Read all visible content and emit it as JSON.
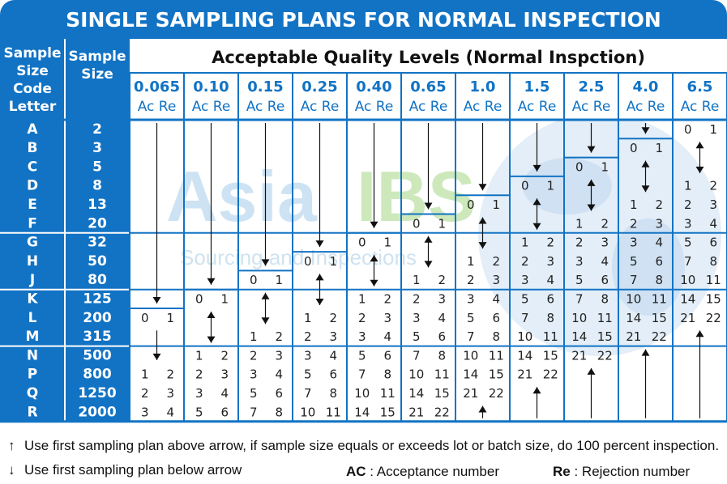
{
  "title": "SINGLE SAMPLING PLANS FOR NORMAL INSPECTION",
  "headers": {
    "code_letter": [
      "Sample",
      "Size",
      "Code",
      "Letter"
    ],
    "sample_size": [
      "Sample",
      "Size"
    ],
    "aql_title": "Acceptable Quality Levels (Normal Inspction)",
    "ac_re": "Ac Re"
  },
  "aql_levels": [
    "0.065",
    "0.10",
    "0.15",
    "0.25",
    "0.40",
    "0.65",
    "1.0",
    "1.5",
    "2.5",
    "4.0",
    "6.5"
  ],
  "rows": [
    {
      "code": "A",
      "size": "2"
    },
    {
      "code": "B",
      "size": "3"
    },
    {
      "code": "C",
      "size": "5"
    },
    {
      "code": "D",
      "size": "8"
    },
    {
      "code": "E",
      "size": "13"
    },
    {
      "code": "F",
      "size": "20"
    },
    {
      "code": "G",
      "size": "32"
    },
    {
      "code": "H",
      "size": "50"
    },
    {
      "code": "J",
      "size": "80"
    },
    {
      "code": "K",
      "size": "125"
    },
    {
      "code": "L",
      "size": "200"
    },
    {
      "code": "M",
      "size": "315"
    },
    {
      "code": "N",
      "size": "500"
    },
    {
      "code": "P",
      "size": "800"
    },
    {
      "code": "Q",
      "size": "1250"
    },
    {
      "code": "R",
      "size": "2000"
    }
  ],
  "plan_values": [
    {
      "col": 0,
      "row": 10,
      "ac": "0",
      "re": "1"
    },
    {
      "col": 0,
      "row": 13,
      "ac": "1",
      "re": "2"
    },
    {
      "col": 0,
      "row": 14,
      "ac": "2",
      "re": "3"
    },
    {
      "col": 0,
      "row": 15,
      "ac": "3",
      "re": "4"
    },
    {
      "col": 1,
      "row": 9,
      "ac": "0",
      "re": "1"
    },
    {
      "col": 1,
      "row": 12,
      "ac": "1",
      "re": "2"
    },
    {
      "col": 1,
      "row": 13,
      "ac": "2",
      "re": "3"
    },
    {
      "col": 1,
      "row": 14,
      "ac": "3",
      "re": "4"
    },
    {
      "col": 1,
      "row": 15,
      "ac": "5",
      "re": "6"
    },
    {
      "col": 2,
      "row": 8,
      "ac": "0",
      "re": "1"
    },
    {
      "col": 2,
      "row": 11,
      "ac": "1",
      "re": "2"
    },
    {
      "col": 2,
      "row": 12,
      "ac": "2",
      "re": "3"
    },
    {
      "col": 2,
      "row": 13,
      "ac": "3",
      "re": "4"
    },
    {
      "col": 2,
      "row": 14,
      "ac": "5",
      "re": "6"
    },
    {
      "col": 2,
      "row": 15,
      "ac": "7",
      "re": "8"
    },
    {
      "col": 3,
      "row": 7,
      "ac": "0",
      "re": "1"
    },
    {
      "col": 3,
      "row": 10,
      "ac": "1",
      "re": "2"
    },
    {
      "col": 3,
      "row": 11,
      "ac": "2",
      "re": "3"
    },
    {
      "col": 3,
      "row": 12,
      "ac": "3",
      "re": "4"
    },
    {
      "col": 3,
      "row": 13,
      "ac": "5",
      "re": "6"
    },
    {
      "col": 3,
      "row": 14,
      "ac": "7",
      "re": "8"
    },
    {
      "col": 3,
      "row": 15,
      "ac": "10",
      "re": "11"
    },
    {
      "col": 4,
      "row": 6,
      "ac": "0",
      "re": "1"
    },
    {
      "col": 4,
      "row": 9,
      "ac": "1",
      "re": "2"
    },
    {
      "col": 4,
      "row": 10,
      "ac": "2",
      "re": "3"
    },
    {
      "col": 4,
      "row": 11,
      "ac": "3",
      "re": "4"
    },
    {
      "col": 4,
      "row": 12,
      "ac": "5",
      "re": "6"
    },
    {
      "col": 4,
      "row": 13,
      "ac": "7",
      "re": "8"
    },
    {
      "col": 4,
      "row": 14,
      "ac": "10",
      "re": "11"
    },
    {
      "col": 4,
      "row": 15,
      "ac": "14",
      "re": "15"
    },
    {
      "col": 5,
      "row": 5,
      "ac": "0",
      "re": "1"
    },
    {
      "col": 5,
      "row": 8,
      "ac": "1",
      "re": "2"
    },
    {
      "col": 5,
      "row": 9,
      "ac": "2",
      "re": "3"
    },
    {
      "col": 5,
      "row": 10,
      "ac": "3",
      "re": "4"
    },
    {
      "col": 5,
      "row": 11,
      "ac": "5",
      "re": "6"
    },
    {
      "col": 5,
      "row": 12,
      "ac": "7",
      "re": "8"
    },
    {
      "col": 5,
      "row": 13,
      "ac": "10",
      "re": "11"
    },
    {
      "col": 5,
      "row": 14,
      "ac": "14",
      "re": "15"
    },
    {
      "col": 5,
      "row": 15,
      "ac": "21",
      "re": "22"
    },
    {
      "col": 6,
      "row": 4,
      "ac": "0",
      "re": "1"
    },
    {
      "col": 6,
      "row": 7,
      "ac": "1",
      "re": "2"
    },
    {
      "col": 6,
      "row": 8,
      "ac": "2",
      "re": "3"
    },
    {
      "col": 6,
      "row": 9,
      "ac": "3",
      "re": "4"
    },
    {
      "col": 6,
      "row": 10,
      "ac": "5",
      "re": "6"
    },
    {
      "col": 6,
      "row": 11,
      "ac": "7",
      "re": "8"
    },
    {
      "col": 6,
      "row": 12,
      "ac": "10",
      "re": "11"
    },
    {
      "col": 6,
      "row": 13,
      "ac": "14",
      "re": "15"
    },
    {
      "col": 6,
      "row": 14,
      "ac": "21",
      "re": "22"
    },
    {
      "col": 7,
      "row": 3,
      "ac": "0",
      "re": "1"
    },
    {
      "col": 7,
      "row": 6,
      "ac": "1",
      "re": "2"
    },
    {
      "col": 7,
      "row": 7,
      "ac": "2",
      "re": "3"
    },
    {
      "col": 7,
      "row": 8,
      "ac": "3",
      "re": "4"
    },
    {
      "col": 7,
      "row": 9,
      "ac": "5",
      "re": "6"
    },
    {
      "col": 7,
      "row": 10,
      "ac": "7",
      "re": "8"
    },
    {
      "col": 7,
      "row": 11,
      "ac": "10",
      "re": "11"
    },
    {
      "col": 7,
      "row": 12,
      "ac": "14",
      "re": "15"
    },
    {
      "col": 7,
      "row": 13,
      "ac": "21",
      "re": "22"
    },
    {
      "col": 8,
      "row": 2,
      "ac": "0",
      "re": "1"
    },
    {
      "col": 8,
      "row": 5,
      "ac": "1",
      "re": "2"
    },
    {
      "col": 8,
      "row": 6,
      "ac": "2",
      "re": "3"
    },
    {
      "col": 8,
      "row": 7,
      "ac": "3",
      "re": "4"
    },
    {
      "col": 8,
      "row": 8,
      "ac": "5",
      "re": "6"
    },
    {
      "col": 8,
      "row": 9,
      "ac": "7",
      "re": "8"
    },
    {
      "col": 8,
      "row": 10,
      "ac": "10",
      "re": "11"
    },
    {
      "col": 8,
      "row": 11,
      "ac": "14",
      "re": "15"
    },
    {
      "col": 8,
      "row": 12,
      "ac": "21",
      "re": "22"
    },
    {
      "col": 9,
      "row": 1,
      "ac": "0",
      "re": "1"
    },
    {
      "col": 9,
      "row": 4,
      "ac": "1",
      "re": "2"
    },
    {
      "col": 9,
      "row": 5,
      "ac": "2",
      "re": "3"
    },
    {
      "col": 9,
      "row": 6,
      "ac": "3",
      "re": "4"
    },
    {
      "col": 9,
      "row": 7,
      "ac": "5",
      "re": "6"
    },
    {
      "col": 9,
      "row": 8,
      "ac": "7",
      "re": "8"
    },
    {
      "col": 9,
      "row": 9,
      "ac": "10",
      "re": "11"
    },
    {
      "col": 9,
      "row": 10,
      "ac": "14",
      "re": "15"
    },
    {
      "col": 9,
      "row": 11,
      "ac": "21",
      "re": "22"
    },
    {
      "col": 10,
      "row": 0,
      "ac": "0",
      "re": "1"
    },
    {
      "col": 10,
      "row": 3,
      "ac": "1",
      "re": "2"
    },
    {
      "col": 10,
      "row": 4,
      "ac": "2",
      "re": "3"
    },
    {
      "col": 10,
      "row": 5,
      "ac": "3",
      "re": "4"
    },
    {
      "col": 10,
      "row": 6,
      "ac": "5",
      "re": "6"
    },
    {
      "col": 10,
      "row": 7,
      "ac": "7",
      "re": "8"
    },
    {
      "col": 10,
      "row": 8,
      "ac": "10",
      "re": "11"
    },
    {
      "col": 10,
      "row": 9,
      "ac": "14",
      "re": "15"
    },
    {
      "col": 10,
      "row": 10,
      "ac": "21",
      "re": "22"
    }
  ],
  "arrows": [
    {
      "col": 0,
      "from_row": 0,
      "to_row": 9,
      "dir": "down"
    },
    {
      "col": 0,
      "from_row": 11,
      "to_row": 12,
      "dir": "down"
    },
    {
      "col": 1,
      "from_row": 0,
      "to_row": 8,
      "dir": "down"
    },
    {
      "col": 1,
      "from_row": 10,
      "to_row": 11,
      "dir": "both"
    },
    {
      "col": 2,
      "from_row": 0,
      "to_row": 7,
      "dir": "down"
    },
    {
      "col": 2,
      "from_row": 9,
      "to_row": 10,
      "dir": "both"
    },
    {
      "col": 3,
      "from_row": 0,
      "to_row": 6,
      "dir": "down"
    },
    {
      "col": 3,
      "from_row": 8,
      "to_row": 9,
      "dir": "both"
    },
    {
      "col": 4,
      "from_row": 0,
      "to_row": 5,
      "dir": "down"
    },
    {
      "col": 4,
      "from_row": 7,
      "to_row": 8,
      "dir": "both"
    },
    {
      "col": 5,
      "from_row": 0,
      "to_row": 4,
      "dir": "down"
    },
    {
      "col": 5,
      "from_row": 6,
      "to_row": 7,
      "dir": "both"
    },
    {
      "col": 6,
      "from_row": 0,
      "to_row": 3,
      "dir": "down"
    },
    {
      "col": 6,
      "from_row": 5,
      "to_row": 6,
      "dir": "both"
    },
    {
      "col": 6,
      "from_row": 15,
      "to_row": 15,
      "dir": "up"
    },
    {
      "col": 7,
      "from_row": 0,
      "to_row": 2,
      "dir": "down"
    },
    {
      "col": 7,
      "from_row": 4,
      "to_row": 5,
      "dir": "both"
    },
    {
      "col": 7,
      "from_row": 14,
      "to_row": 15,
      "dir": "up"
    },
    {
      "col": 8,
      "from_row": 0,
      "to_row": 1,
      "dir": "down"
    },
    {
      "col": 8,
      "from_row": 3,
      "to_row": 4,
      "dir": "both"
    },
    {
      "col": 8,
      "from_row": 13,
      "to_row": 15,
      "dir": "up"
    },
    {
      "col": 9,
      "from_row": 0,
      "to_row": 0,
      "dir": "down"
    },
    {
      "col": 9,
      "from_row": 2,
      "to_row": 3,
      "dir": "both"
    },
    {
      "col": 9,
      "from_row": 12,
      "to_row": 15,
      "dir": "up"
    },
    {
      "col": 10,
      "from_row": 1,
      "to_row": 2,
      "dir": "both"
    },
    {
      "col": 10,
      "from_row": 11,
      "to_row": 15,
      "dir": "up"
    }
  ],
  "watermark": {
    "brand_a": "Asia",
    "brand_b": "IBS",
    "tagline": "Sourcing and Inspections"
  },
  "legend": {
    "up_arrow_glyph": "↑",
    "up_text": "Use first sampling plan above arrow, if sample size equals or exceeds lot or batch size, do 100 percent inspection.",
    "down_arrow_glyph": "↓",
    "down_text": "Use first sampling plan below arrow",
    "ac_label": "AC",
    "ac_text": ": Acceptance number",
    "re_label": "Re",
    "re_text": ": Rejection number"
  },
  "colors": {
    "header_blue": "#1273c4",
    "grid_line": "#1273c4",
    "region_bg": "#dceaf6",
    "text": "#222222",
    "header_text": "#ffffff"
  }
}
